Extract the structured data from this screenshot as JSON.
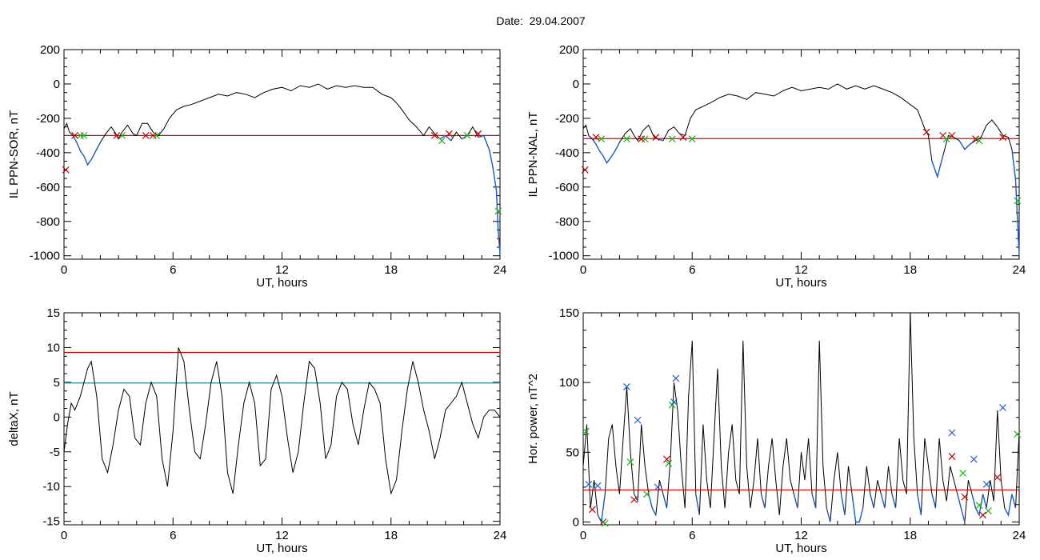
{
  "page": {
    "title": "Date:  29.04.2007",
    "colors": {
      "background": "#ffffff",
      "trace": "#000000",
      "threshold": "#e00000",
      "level": "#2a8a8a",
      "selected": "#1f5fc8",
      "marker_red": "#c00000",
      "marker_green": "#20b020",
      "marker_blue": "#2a5fd0"
    }
  },
  "chart_data": [
    {
      "id": "il_ppn_sor",
      "type": "line",
      "xlabel": "UT, hours",
      "ylabel": "IL PPN-SOR, nT",
      "xlim": [
        0,
        24
      ],
      "ylim": [
        -1020,
        200
      ],
      "xticks": [
        0,
        6,
        12,
        18,
        24
      ],
      "yticks": [
        200,
        0,
        -200,
        -400,
        -600,
        -800,
        -1000
      ],
      "series": [
        {
          "x": [
            0,
            0.15,
            0.3,
            0.5,
            0.7,
            0.9,
            1.1,
            1.3,
            1.5,
            1.7,
            2.0,
            2.3,
            2.6,
            2.8,
            3.0,
            3.2,
            3.5,
            3.8,
            4.0,
            4.3,
            4.6,
            4.9,
            5.2,
            5.5,
            5.8,
            6.2,
            6.6,
            7.0,
            7.5,
            8.0,
            8.5,
            9.0,
            9.5,
            10.0,
            10.5,
            11.0,
            11.5,
            12.0,
            12.5,
            13.0,
            13.5,
            14.0,
            14.5,
            15.0,
            15.5,
            16.0,
            16.5,
            17.0,
            17.5,
            18.0,
            18.3,
            18.6,
            19.0,
            19.4,
            19.8,
            20.1,
            20.4,
            20.7,
            21.0,
            21.3,
            21.6,
            21.9,
            22.2,
            22.5,
            22.8,
            23.1,
            23.4,
            23.6,
            23.8,
            23.9,
            24.0
          ],
          "y": [
            -260,
            -230,
            -280,
            -300,
            -340,
            -390,
            -420,
            -470,
            -440,
            -400,
            -340,
            -290,
            -250,
            -280,
            -320,
            -280,
            -240,
            -290,
            -300,
            -230,
            -230,
            -280,
            -300,
            -260,
            -200,
            -150,
            -130,
            -120,
            -100,
            -80,
            -60,
            -70,
            -50,
            -60,
            -80,
            -50,
            -30,
            -20,
            -40,
            -10,
            -20,
            0,
            -30,
            -10,
            -20,
            -10,
            -20,
            -20,
            -60,
            -80,
            -110,
            -150,
            -210,
            -250,
            -300,
            -250,
            -290,
            -320,
            -300,
            -330,
            -280,
            -320,
            -300,
            -250,
            -310,
            -300,
            -380,
            -480,
            -620,
            -850,
            -990
          ]
        }
      ],
      "threshold": -300,
      "markers": [
        {
          "x": 0.1,
          "y": -500,
          "color": "red"
        },
        {
          "x": 0.6,
          "y": -300,
          "color": "red"
        },
        {
          "x": 0.9,
          "y": -300,
          "color": "green"
        },
        {
          "x": 1.1,
          "y": -300,
          "color": "green"
        },
        {
          "x": 2.9,
          "y": -300,
          "color": "red"
        },
        {
          "x": 3.2,
          "y": -300,
          "color": "green"
        },
        {
          "x": 4.5,
          "y": -300,
          "color": "red"
        },
        {
          "x": 4.9,
          "y": -300,
          "color": "red"
        },
        {
          "x": 5.1,
          "y": -300,
          "color": "green"
        },
        {
          "x": 20.4,
          "y": -300,
          "color": "red"
        },
        {
          "x": 20.8,
          "y": -330,
          "color": "green"
        },
        {
          "x": 21.2,
          "y": -290,
          "color": "red"
        },
        {
          "x": 22.2,
          "y": -300,
          "color": "green"
        },
        {
          "x": 22.8,
          "y": -290,
          "color": "red"
        },
        {
          "x": 23.9,
          "y": -740,
          "color": "green"
        }
      ]
    },
    {
      "id": "il_ppn_nal",
      "type": "line",
      "xlabel": "UT, hours",
      "ylabel": "IL PPN-NAL, nT",
      "xlim": [
        0,
        24
      ],
      "ylim": [
        -1020,
        200
      ],
      "xticks": [
        0,
        6,
        12,
        18,
        24
      ],
      "yticks": [
        200,
        0,
        -200,
        -400,
        -600,
        -800,
        -1000
      ],
      "series": [
        {
          "x": [
            0,
            0.15,
            0.3,
            0.5,
            0.7,
            0.9,
            1.1,
            1.3,
            1.5,
            1.7,
            2.0,
            2.3,
            2.6,
            2.8,
            3.0,
            3.3,
            3.6,
            3.9,
            4.1,
            4.4,
            4.7,
            5.0,
            5.3,
            5.6,
            5.9,
            6.2,
            6.6,
            7.0,
            7.5,
            8.0,
            8.5,
            9.0,
            9.5,
            10.0,
            10.5,
            11.0,
            11.5,
            12.0,
            12.5,
            13.0,
            13.5,
            14.0,
            14.5,
            15.0,
            15.5,
            16.0,
            16.5,
            17.0,
            17.5,
            18.0,
            18.4,
            18.8,
            19.0,
            19.2,
            19.5,
            19.8,
            20.1,
            20.4,
            20.7,
            21.0,
            21.3,
            21.6,
            21.9,
            22.2,
            22.5,
            22.8,
            23.1,
            23.4,
            23.6,
            23.8,
            24.0
          ],
          "y": [
            -260,
            -240,
            -300,
            -320,
            -350,
            -390,
            -420,
            -460,
            -430,
            -400,
            -340,
            -290,
            -260,
            -300,
            -330,
            -270,
            -240,
            -310,
            -320,
            -330,
            -270,
            -250,
            -290,
            -300,
            -200,
            -150,
            -130,
            -110,
            -80,
            -60,
            -70,
            -90,
            -50,
            -60,
            -70,
            -40,
            -20,
            -40,
            -30,
            -20,
            -30,
            0,
            -30,
            -10,
            -30,
            -10,
            -30,
            -50,
            -80,
            -120,
            -150,
            -260,
            -300,
            -450,
            -540,
            -420,
            -300,
            -310,
            -330,
            -380,
            -350,
            -330,
            -310,
            -240,
            -210,
            -250,
            -300,
            -310,
            -380,
            -560,
            -1000
          ]
        }
      ],
      "threshold": -318,
      "markers": [
        {
          "x": 0.1,
          "y": -500,
          "color": "red"
        },
        {
          "x": 0.7,
          "y": -310,
          "color": "red"
        },
        {
          "x": 1.0,
          "y": -320,
          "color": "green"
        },
        {
          "x": 2.4,
          "y": -320,
          "color": "green"
        },
        {
          "x": 3.2,
          "y": -320,
          "color": "red"
        },
        {
          "x": 3.4,
          "y": -320,
          "color": "green"
        },
        {
          "x": 4.0,
          "y": -310,
          "color": "red"
        },
        {
          "x": 4.9,
          "y": -320,
          "color": "green"
        },
        {
          "x": 5.5,
          "y": -310,
          "color": "red"
        },
        {
          "x": 6.0,
          "y": -320,
          "color": "green"
        },
        {
          "x": 18.9,
          "y": -280,
          "color": "red"
        },
        {
          "x": 19.8,
          "y": -300,
          "color": "red"
        },
        {
          "x": 20.0,
          "y": -320,
          "color": "green"
        },
        {
          "x": 20.3,
          "y": -300,
          "color": "red"
        },
        {
          "x": 21.6,
          "y": -320,
          "color": "red"
        },
        {
          "x": 21.8,
          "y": -330,
          "color": "green"
        },
        {
          "x": 23.1,
          "y": -310,
          "color": "red"
        },
        {
          "x": 23.9,
          "y": -680,
          "color": "green"
        }
      ]
    },
    {
      "id": "deltax",
      "type": "line",
      "xlabel": "UT, hours",
      "ylabel": "deltaX, nT",
      "xlim": [
        0,
        24
      ],
      "ylim": [
        -15.5,
        15
      ],
      "xticks": [
        0,
        6,
        12,
        18,
        24
      ],
      "yticks": [
        15,
        10,
        5,
        0,
        -5,
        -10,
        -15
      ],
      "series": [
        {
          "x": [
            0,
            0.2,
            0.4,
            0.6,
            0.9,
            1.1,
            1.3,
            1.5,
            1.8,
            2.1,
            2.4,
            2.7,
            3.0,
            3.3,
            3.6,
            3.9,
            4.2,
            4.5,
            4.8,
            5.1,
            5.4,
            5.7,
            6.0,
            6.3,
            6.6,
            6.9,
            7.2,
            7.5,
            7.8,
            8.1,
            8.4,
            8.7,
            9.0,
            9.3,
            9.6,
            9.9,
            10.2,
            10.5,
            10.8,
            11.1,
            11.4,
            11.7,
            12.0,
            12.3,
            12.6,
            12.9,
            13.2,
            13.5,
            13.8,
            14.1,
            14.4,
            14.7,
            15.0,
            15.3,
            15.6,
            15.9,
            16.2,
            16.5,
            16.8,
            17.1,
            17.4,
            17.7,
            18.0,
            18.3,
            18.6,
            18.9,
            19.2,
            19.5,
            19.8,
            20.1,
            20.4,
            20.7,
            21.0,
            21.3,
            21.6,
            21.9,
            22.2,
            22.5,
            22.8,
            23.1,
            23.4,
            23.7,
            24.0
          ],
          "y": [
            -5,
            -1,
            2,
            1,
            3,
            5,
            7,
            8,
            3,
            -6,
            -8,
            -4,
            1,
            4,
            3,
            -3,
            -4,
            2,
            5,
            3,
            -6,
            -10,
            -2,
            10,
            8,
            1,
            -5,
            -6,
            -1,
            5,
            8,
            3,
            -8,
            -11,
            -4,
            2,
            5,
            2,
            -7,
            -6,
            4,
            6,
            3,
            -3,
            -8,
            -5,
            2,
            8,
            7,
            2,
            -6,
            -4,
            3,
            5,
            4,
            -1,
            -4,
            1,
            5,
            4,
            2,
            -6,
            -11,
            -9,
            -2,
            4,
            8,
            5,
            1,
            -2,
            -6,
            -3,
            1,
            2,
            3,
            5,
            2,
            -1,
            -3,
            0,
            1,
            1,
            0
          ]
        }
      ],
      "hlines": [
        {
          "y": 9.3,
          "color": "red"
        },
        {
          "y": 4.9,
          "color": "teal"
        }
      ]
    },
    {
      "id": "hor_power",
      "type": "line",
      "xlabel": "UT, hours",
      "ylabel": "Hor. power, nT^2",
      "xlim": [
        0,
        24
      ],
      "ylim": [
        -2,
        150
      ],
      "xticks": [
        0,
        6,
        12,
        18,
        24
      ],
      "yticks": [
        150,
        100,
        50,
        0
      ],
      "series": [
        {
          "x": [
            0,
            0.2,
            0.4,
            0.6,
            0.8,
            1.0,
            1.2,
            1.4,
            1.6,
            1.8,
            2.0,
            2.2,
            2.4,
            2.6,
            2.8,
            3.0,
            3.2,
            3.4,
            3.6,
            3.8,
            4.0,
            4.2,
            4.4,
            4.6,
            4.8,
            5.0,
            5.2,
            5.4,
            5.6,
            5.8,
            6.0,
            6.2,
            6.4,
            6.6,
            6.8,
            7.0,
            7.2,
            7.4,
            7.6,
            7.8,
            8.0,
            8.2,
            8.4,
            8.6,
            8.8,
            9.0,
            9.2,
            9.4,
            9.6,
            9.8,
            10.0,
            10.2,
            10.4,
            10.6,
            10.8,
            11.0,
            11.2,
            11.4,
            11.6,
            11.8,
            12.0,
            12.2,
            12.4,
            12.6,
            12.8,
            13.0,
            13.2,
            13.4,
            13.6,
            13.8,
            14.0,
            14.2,
            14.4,
            14.6,
            14.8,
            15.0,
            15.2,
            15.4,
            15.6,
            15.8,
            16.0,
            16.2,
            16.4,
            16.6,
            16.8,
            17.0,
            17.2,
            17.4,
            17.6,
            17.8,
            18.0,
            18.2,
            18.4,
            18.6,
            18.8,
            19.0,
            19.2,
            19.4,
            19.6,
            19.8,
            20.0,
            20.2,
            20.4,
            20.6,
            20.8,
            21.0,
            21.2,
            21.4,
            21.6,
            21.8,
            22.0,
            22.2,
            22.4,
            22.6,
            22.8,
            23.0,
            23.2,
            23.4,
            23.6,
            23.8,
            24.0
          ],
          "y": [
            40,
            70,
            10,
            30,
            5,
            0,
            20,
            60,
            70,
            40,
            20,
            60,
            97,
            50,
            20,
            15,
            70,
            40,
            20,
            10,
            5,
            30,
            20,
            10,
            45,
            100,
            80,
            40,
            10,
            90,
            130,
            20,
            5,
            70,
            30,
            10,
            60,
            110,
            40,
            10,
            50,
            70,
            30,
            20,
            130,
            40,
            10,
            30,
            60,
            20,
            10,
            40,
            60,
            30,
            5,
            40,
            60,
            30,
            20,
            10,
            50,
            30,
            60,
            20,
            10,
            130,
            40,
            10,
            0,
            30,
            50,
            20,
            5,
            40,
            20,
            0,
            0,
            10,
            40,
            20,
            10,
            30,
            20,
            10,
            40,
            20,
            10,
            60,
            30,
            20,
            150,
            60,
            20,
            5,
            60,
            40,
            20,
            10,
            60,
            30,
            15,
            40,
            30,
            20,
            10,
            0,
            30,
            20,
            10,
            5,
            20,
            10,
            30,
            15,
            80,
            30,
            10,
            5,
            20,
            10,
            65
          ]
        }
      ],
      "threshold": 23,
      "markers": [
        {
          "x": 0.15,
          "y": 65,
          "color": "green"
        },
        {
          "x": 0.3,
          "y": 27,
          "color": "blue"
        },
        {
          "x": 0.5,
          "y": 9,
          "color": "red"
        },
        {
          "x": 0.8,
          "y": 26,
          "color": "blue"
        },
        {
          "x": 1.1,
          "y": 0,
          "color": "red"
        },
        {
          "x": 1.2,
          "y": -1,
          "color": "green"
        },
        {
          "x": 2.4,
          "y": 97,
          "color": "blue"
        },
        {
          "x": 2.6,
          "y": 43,
          "color": "green"
        },
        {
          "x": 2.8,
          "y": 16,
          "color": "red"
        },
        {
          "x": 3.0,
          "y": 73,
          "color": "blue"
        },
        {
          "x": 3.5,
          "y": 20,
          "color": "green"
        },
        {
          "x": 4.1,
          "y": 25,
          "color": "blue"
        },
        {
          "x": 4.6,
          "y": 45,
          "color": "red"
        },
        {
          "x": 4.7,
          "y": 42,
          "color": "green"
        },
        {
          "x": 4.9,
          "y": 84,
          "color": "green"
        },
        {
          "x": 5.0,
          "y": 86,
          "color": "blue"
        },
        {
          "x": 5.1,
          "y": 103,
          "color": "blue"
        },
        {
          "x": 20.3,
          "y": 64,
          "color": "blue"
        },
        {
          "x": 20.3,
          "y": 47,
          "color": "red"
        },
        {
          "x": 20.9,
          "y": 35,
          "color": "green"
        },
        {
          "x": 21.0,
          "y": 18,
          "color": "red"
        },
        {
          "x": 21.5,
          "y": 45,
          "color": "blue"
        },
        {
          "x": 21.8,
          "y": 12,
          "color": "green"
        },
        {
          "x": 22.0,
          "y": 5,
          "color": "red"
        },
        {
          "x": 22.2,
          "y": 27,
          "color": "blue"
        },
        {
          "x": 22.3,
          "y": 8,
          "color": "green"
        },
        {
          "x": 22.8,
          "y": 32,
          "color": "red"
        },
        {
          "x": 23.1,
          "y": 82,
          "color": "blue"
        },
        {
          "x": 23.9,
          "y": 63,
          "color": "green"
        }
      ]
    }
  ]
}
